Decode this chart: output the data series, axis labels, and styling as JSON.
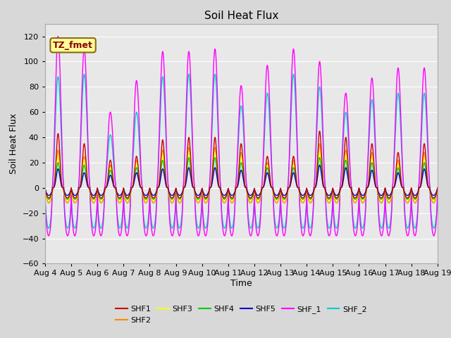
{
  "title": "Soil Heat Flux",
  "xlabel": "Time",
  "ylabel": "Soil Heat Flux",
  "ylim": [
    -60,
    130
  ],
  "yticks": [
    -60,
    -40,
    -20,
    0,
    20,
    40,
    60,
    80,
    100,
    120
  ],
  "num_days": 15,
  "colors": {
    "SHF1": "#cc0000",
    "SHF2": "#ff8800",
    "SHF3": "#ffff00",
    "SHF4": "#00cc00",
    "SHF5": "#0000cc",
    "SHF_1": "#ff00ff",
    "SHF_2": "#00cccc"
  },
  "annotation_text": "TZ_fmet",
  "plot_bg_color": "#e8e8e8",
  "fig_bg_color": "#d8d8d8",
  "xtick_labels": [
    "Aug 4",
    "Aug 5",
    "Aug 6",
    "Aug 7",
    "Aug 8",
    "Aug 9",
    "Aug 10",
    "Aug 11",
    "Aug 12",
    "Aug 13",
    "Aug 14",
    "Aug 15",
    "Aug 16",
    "Aug 17",
    "Aug 18",
    "Aug 19"
  ],
  "shf1_peaks": [
    43,
    35,
    22,
    25,
    38,
    40,
    40,
    35,
    25,
    25,
    45,
    40,
    35,
    28,
    35,
    35
  ],
  "shf2_peaks": [
    30,
    25,
    18,
    22,
    30,
    32,
    32,
    28,
    20,
    22,
    35,
    30,
    28,
    22,
    28,
    28
  ],
  "shf3_peaks": [
    25,
    22,
    16,
    20,
    26,
    28,
    28,
    24,
    18,
    18,
    28,
    26,
    24,
    18,
    24,
    24
  ],
  "shf4_peaks": [
    20,
    18,
    14,
    16,
    22,
    24,
    24,
    20,
    16,
    16,
    24,
    22,
    20,
    16,
    20,
    20
  ],
  "shf5_peaks": [
    15,
    12,
    10,
    12,
    15,
    16,
    16,
    14,
    12,
    12,
    18,
    16,
    14,
    12,
    15,
    15
  ],
  "shf_1_peaks": [
    120,
    110,
    60,
    85,
    108,
    108,
    110,
    81,
    97,
    110,
    100,
    75,
    87,
    95,
    95,
    95
  ],
  "shf_2_peaks": [
    88,
    90,
    42,
    60,
    88,
    90,
    90,
    65,
    75,
    90,
    80,
    60,
    70,
    75,
    75,
    75
  ],
  "shf1_night": -8,
  "shf2_night": -12,
  "shf3_night": -10,
  "shf4_night": -9,
  "shf5_night": -6,
  "shf_1_night": -38,
  "shf_2_night": -32
}
